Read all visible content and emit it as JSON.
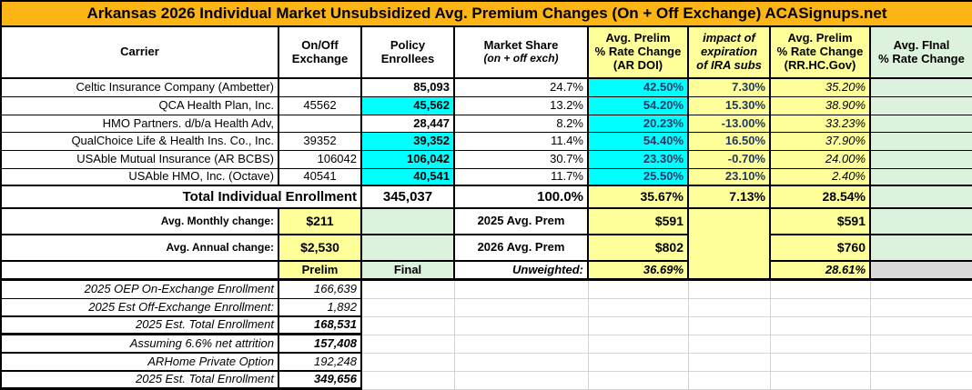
{
  "title": "Arkansas 2026 Individual Market Unsubsidized Avg. Premium Changes (On + Off Exchange) ACASignups.net",
  "header": {
    "carrier": "Carrier",
    "on_off_exchange": "On/Off\nExchange",
    "policy_enrollees": "Policy\nEnrollees",
    "market_share": "Market Share",
    "market_share_sub": "(on + off exch)",
    "avg_prelim_ardoi": "Avg. Prelim\n% Rate Change\n(AR DOI)",
    "ira_impact": "impact of\nexpiration\nof IRA subs",
    "avg_prelim_rrhc": "Avg. Prelim\n% Rate Change\n(RR.HC.Gov)",
    "avg_final": "Avg. FInal\n% Rate Change"
  },
  "rows": [
    {
      "name": "Celtic Insurance Company (Ambetter)",
      "onoff": "",
      "enrollees": "85,093",
      "share": "24.7%",
      "ardoi": "42.50%",
      "ira": "7.30%",
      "rrhc": "35.20%",
      "final": ""
    },
    {
      "name": "QCA Health Plan, Inc.",
      "onoff": "45562",
      "enrollees": "45,562",
      "share": "13.2%",
      "ardoi": "54.20%",
      "ira": "15.30%",
      "rrhc": "38.90%",
      "final": ""
    },
    {
      "name": "HMO Partners. d/b/a Health Adv,",
      "onoff": "",
      "enrollees": "28,447",
      "share": "8.2%",
      "ardoi": "20.23%",
      "ira": "-13.00%",
      "rrhc": "33.23%",
      "final": ""
    },
    {
      "name": "QualChoice Life & Health Ins. Co., Inc.",
      "onoff": "39352",
      "enrollees": "39,352",
      "share": "11.4%",
      "ardoi": "54.40%",
      "ira": "16.50%",
      "rrhc": "37.90%",
      "final": ""
    },
    {
      "name": "USAble Mutual Insurance (AR BCBS)",
      "onoff": "106042",
      "enrollees": "106,042",
      "share": "30.7%",
      "ardoi": "23.30%",
      "ira": "-0.70%",
      "rrhc": "24.00%",
      "final": ""
    },
    {
      "name": "USAble HMO, Inc. (Octave)",
      "onoff": "40541",
      "enrollees": "40,541",
      "share": "11.7%",
      "ardoi": "25.50%",
      "ira": "23.10%",
      "rrhc": "2.40%",
      "final": ""
    }
  ],
  "total_row": {
    "label": "Total Individual Enrollment",
    "enrollees": "345,037",
    "share": "100.0%",
    "ardoi": "35.67%",
    "ira": "7.13%",
    "rrhc": "28.54%"
  },
  "summary": {
    "monthly": {
      "label": "Avg. Monthly change:",
      "value": "$211",
      "prem_label": "2025 Avg. Prem",
      "ardoi": "$591",
      "rrhc": "$591"
    },
    "annual": {
      "label": "Avg. Annual change:",
      "value": "$2,530",
      "prem_label": "2026 Avg. Prem",
      "ardoi": "$802",
      "rrhc": "$760"
    },
    "prelim_label": "Prelim",
    "final_label": "Final",
    "unweighted_label": "Unweighted:",
    "unweighted_ardoi": "36.69%",
    "unweighted_rrhc": "28.61%"
  },
  "bottom_rows": [
    {
      "label": "2025 OEP On-Exchange Enrollment",
      "value": "166,639"
    },
    {
      "label": "2025 Est Off-Exchange Enrollment:",
      "value": "1,892"
    },
    {
      "label": "2025 Est. Total Enrollment",
      "value": "168,531"
    },
    {
      "label": "Assuming 6.6% net attrition",
      "value": "157,408"
    },
    {
      "label": "ARHome Private Option",
      "value": "192,248"
    },
    {
      "label": "2025 Est. Total Enrollment",
      "value": "349,656"
    }
  ],
  "colors": {
    "title_bg": "#FDB515",
    "highlight_cyan": "#00FFFF",
    "cell_yellow": "#FFFF99",
    "cell_green": "#DCF2DC",
    "cell_gray": "#D9D9D9",
    "navy_text": "#1F3864"
  }
}
